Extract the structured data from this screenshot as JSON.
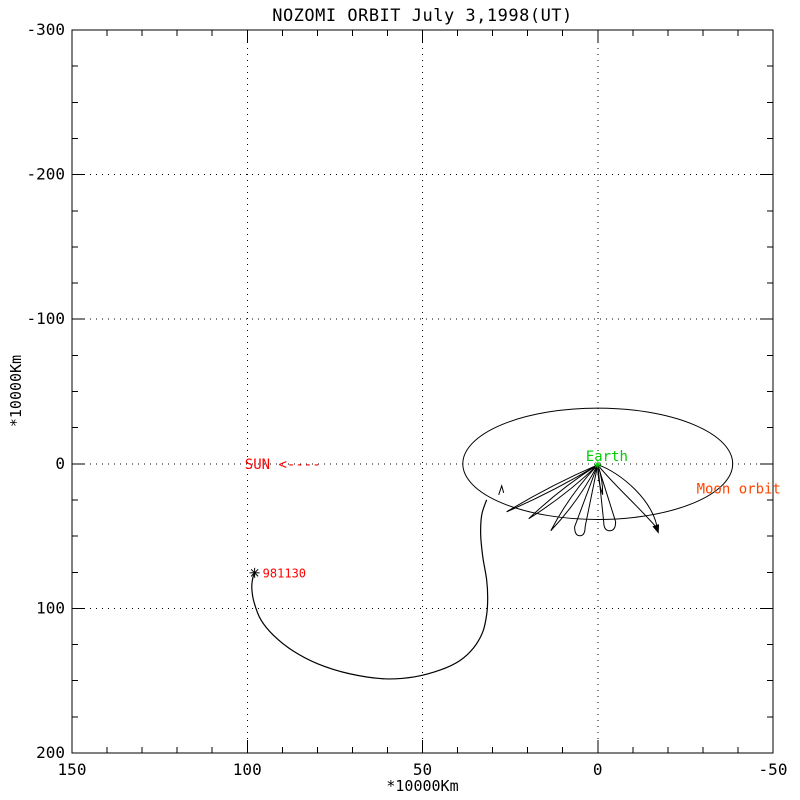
{
  "page": {
    "background": "#ffffff",
    "foreground": "#000000"
  },
  "chart_data": {
    "type": "line",
    "title": "NOZOMI ORBIT July 3,1998(UT)",
    "xlabel": "*10000Km",
    "ylabel": "*10000Km",
    "xlim": [
      150,
      -50
    ],
    "ylim": [
      -300,
      200
    ],
    "x_ticks": [
      150,
      100,
      50,
      0,
      -50
    ],
    "y_ticks": [
      -300,
      -200,
      -100,
      0,
      100,
      200
    ],
    "x_minor_tick_step": 10,
    "y_minor_tick_step": 25,
    "x_gridlines": [
      100,
      50,
      0
    ],
    "y_gridlines": [
      -200,
      -100,
      0,
      100
    ],
    "grid_style": "dotted",
    "axis_color": "#000000",
    "units_note": "axes in units of 10000 km; x increases leftward, y increases downward",
    "earth": {
      "label": "Earth",
      "x": 0,
      "y": 0,
      "label_x": 3.4,
      "label_y": -2,
      "color": "#00cc00"
    },
    "moon_orbit": {
      "label": "Moon orbit",
      "center_x": 0,
      "center_y": 0,
      "radius": 38.5,
      "label_x": -28.2,
      "label_y": 20.7,
      "line_color": "#000000",
      "label_color": "#ff4500"
    },
    "sun_pointer": {
      "text": "SUN <----",
      "x": 100.7,
      "y": 3.5,
      "color": "#ff0000"
    },
    "end_marker": {
      "label": "981130",
      "x": 97.9,
      "y": 75.4,
      "label_x": 95.6,
      "label_y": 78.8,
      "marker": "asterisk",
      "marker_color": "#000000",
      "label_color": "#ff0000"
    },
    "direction_tick": {
      "x": 27.4,
      "y": 18.0
    },
    "phasing_loops": [
      {
        "tip_x": 26.0,
        "tip_y": 33.2,
        "half_width": 1.0,
        "shape": "lens"
      },
      {
        "tip_x": 19.7,
        "tip_y": 38.0,
        "half_width": 1.3,
        "shape": "lens"
      },
      {
        "tip_x": 13.4,
        "tip_y": 46.3,
        "half_width": 1.6,
        "shape": "lens"
      },
      {
        "tip_x": 5.1,
        "tip_y": 49.8,
        "half_width": 1.5,
        "shape": "u"
      },
      {
        "tip_x": -3.4,
        "tip_y": 46.3,
        "half_width": 1.7,
        "shape": "u"
      },
      {
        "tip_x": -1.4,
        "tip_y": 21.4,
        "half_width": 0.8,
        "shape": "lens"
      },
      {
        "tip_x": -17.1,
        "tip_y": 47.0,
        "half_width": 3.0,
        "shape": "arrow"
      }
    ],
    "transfer_trajectory": [
      [
        31.7,
        24.9
      ],
      [
        33.1,
        35.3
      ],
      [
        33.4,
        49.1
      ],
      [
        32.8,
        64.3
      ],
      [
        31.7,
        80.2
      ],
      [
        31.4,
        92.7
      ],
      [
        31.7,
        104.4
      ],
      [
        32.8,
        116.2
      ],
      [
        35.4,
        127.2
      ],
      [
        39.4,
        136.2
      ],
      [
        44.8,
        142.5
      ],
      [
        52.2,
        147.3
      ],
      [
        60.8,
        148.7
      ],
      [
        70.8,
        145.2
      ],
      [
        79.9,
        138.3
      ],
      [
        87.0,
        129.3
      ],
      [
        92.4,
        118.9
      ],
      [
        96.1,
        107.9
      ],
      [
        98.1,
        95.4
      ],
      [
        98.7,
        85.8
      ],
      [
        98.4,
        78.8
      ],
      [
        97.9,
        76.1
      ]
    ]
  }
}
